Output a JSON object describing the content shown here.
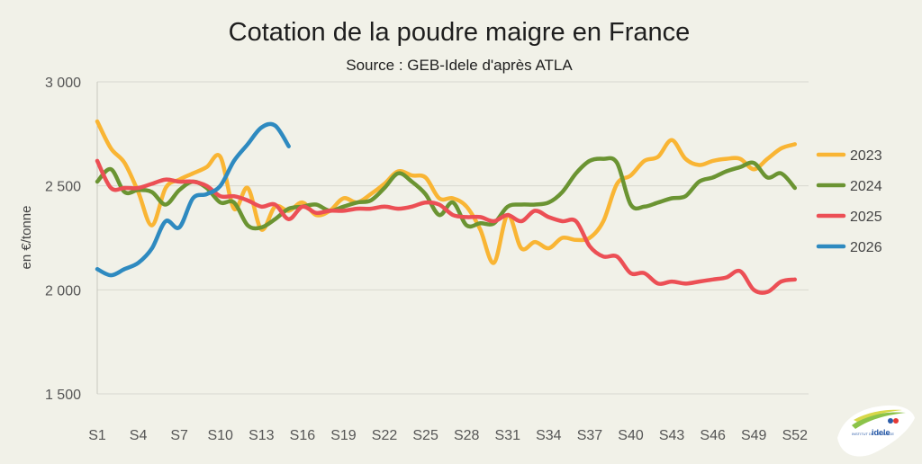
{
  "chart_data": {
    "type": "line",
    "title": "Cotation de la poudre maigre en France",
    "subtitle": "Source : GEB-Idele d'après ATLA",
    "ylabel": "en €/tonne",
    "xlabel": "",
    "ylim": [
      1500,
      3000
    ],
    "yticks": [
      1500,
      2000,
      2500,
      3000
    ],
    "ytick_labels": [
      "1 500",
      "2 000",
      "2 500",
      "3 000"
    ],
    "xlim": [
      1,
      53
    ],
    "xticks": [
      1,
      4,
      7,
      10,
      13,
      16,
      19,
      22,
      25,
      28,
      31,
      34,
      37,
      40,
      43,
      46,
      49,
      52
    ],
    "xtick_labels": [
      "S1",
      "S4",
      "S7",
      "S10",
      "S13",
      "S16",
      "S19",
      "S22",
      "S25",
      "S28",
      "S31",
      "S34",
      "S37",
      "S40",
      "S43",
      "S46",
      "S49",
      "S52"
    ],
    "grid": "horizontal",
    "legend_position": "right",
    "series": [
      {
        "name": "2023",
        "color": "#f9b534",
        "x": [
          1,
          2,
          3,
          4,
          5,
          6,
          7,
          8,
          9,
          10,
          11,
          12,
          13,
          14,
          15,
          16,
          17,
          18,
          19,
          20,
          21,
          22,
          23,
          24,
          25,
          26,
          27,
          28,
          29,
          30,
          31,
          32,
          33,
          34,
          35,
          36,
          37,
          38,
          39,
          40,
          41,
          42,
          43,
          44,
          45,
          46,
          47,
          48,
          49,
          50,
          51,
          52
        ],
        "values": [
          2810,
          2680,
          2610,
          2470,
          2310,
          2490,
          2530,
          2560,
          2590,
          2640,
          2390,
          2490,
          2290,
          2400,
          2380,
          2420,
          2360,
          2380,
          2440,
          2420,
          2460,
          2510,
          2570,
          2550,
          2540,
          2440,
          2440,
          2400,
          2290,
          2130,
          2360,
          2200,
          2230,
          2200,
          2250,
          2240,
          2250,
          2330,
          2510,
          2550,
          2620,
          2640,
          2720,
          2630,
          2600,
          2620,
          2630,
          2630,
          2580,
          2630,
          2680,
          2700
        ]
      },
      {
        "name": "2024",
        "color": "#6b9432",
        "x": [
          1,
          2,
          3,
          4,
          5,
          6,
          7,
          8,
          9,
          10,
          11,
          12,
          13,
          14,
          15,
          16,
          17,
          18,
          19,
          20,
          21,
          22,
          23,
          24,
          25,
          26,
          27,
          28,
          29,
          30,
          31,
          32,
          33,
          34,
          35,
          36,
          37,
          38,
          39,
          40,
          41,
          42,
          43,
          44,
          45,
          46,
          47,
          48,
          49,
          50,
          51,
          52
        ],
        "values": [
          2520,
          2580,
          2470,
          2480,
          2470,
          2410,
          2480,
          2520,
          2490,
          2420,
          2420,
          2310,
          2300,
          2340,
          2390,
          2400,
          2410,
          2380,
          2400,
          2420,
          2430,
          2490,
          2560,
          2520,
          2460,
          2360,
          2420,
          2310,
          2320,
          2320,
          2400,
          2410,
          2410,
          2420,
          2470,
          2560,
          2620,
          2630,
          2610,
          2410,
          2400,
          2420,
          2440,
          2450,
          2520,
          2540,
          2570,
          2590,
          2610,
          2540,
          2560,
          2490
        ]
      },
      {
        "name": "2025",
        "color": "#ec4f55",
        "x": [
          1,
          2,
          3,
          4,
          5,
          6,
          7,
          8,
          9,
          10,
          11,
          12,
          13,
          14,
          15,
          16,
          17,
          18,
          19,
          20,
          21,
          22,
          23,
          24,
          25,
          26,
          27,
          28,
          29,
          30,
          31,
          32,
          33,
          34,
          35,
          36,
          37,
          38,
          39,
          40,
          41,
          42,
          43,
          44,
          45,
          46,
          47,
          48,
          49,
          50,
          51,
          52
        ],
        "values": [
          2620,
          2490,
          2490,
          2490,
          2510,
          2530,
          2520,
          2520,
          2500,
          2450,
          2450,
          2430,
          2400,
          2410,
          2340,
          2400,
          2370,
          2380,
          2380,
          2390,
          2390,
          2400,
          2390,
          2400,
          2420,
          2410,
          2360,
          2350,
          2350,
          2330,
          2360,
          2330,
          2380,
          2350,
          2330,
          2330,
          2210,
          2160,
          2160,
          2080,
          2080,
          2030,
          2040,
          2030,
          2040,
          2050,
          2060,
          2090,
          2000,
          1990,
          2040,
          2050
        ]
      },
      {
        "name": "2026",
        "color": "#2e8ac0",
        "x": [
          1,
          2,
          3,
          4,
          5,
          6,
          7,
          8,
          9,
          10,
          11,
          12,
          13,
          14,
          15
        ],
        "values": [
          2100,
          2070,
          2100,
          2130,
          2200,
          2330,
          2300,
          2440,
          2460,
          2500,
          2620,
          2700,
          2780,
          2790,
          2690
        ]
      }
    ]
  },
  "logo": {
    "text": "idele",
    "small_text": "INSTITUT DE L'ÉLEVAGE"
  }
}
